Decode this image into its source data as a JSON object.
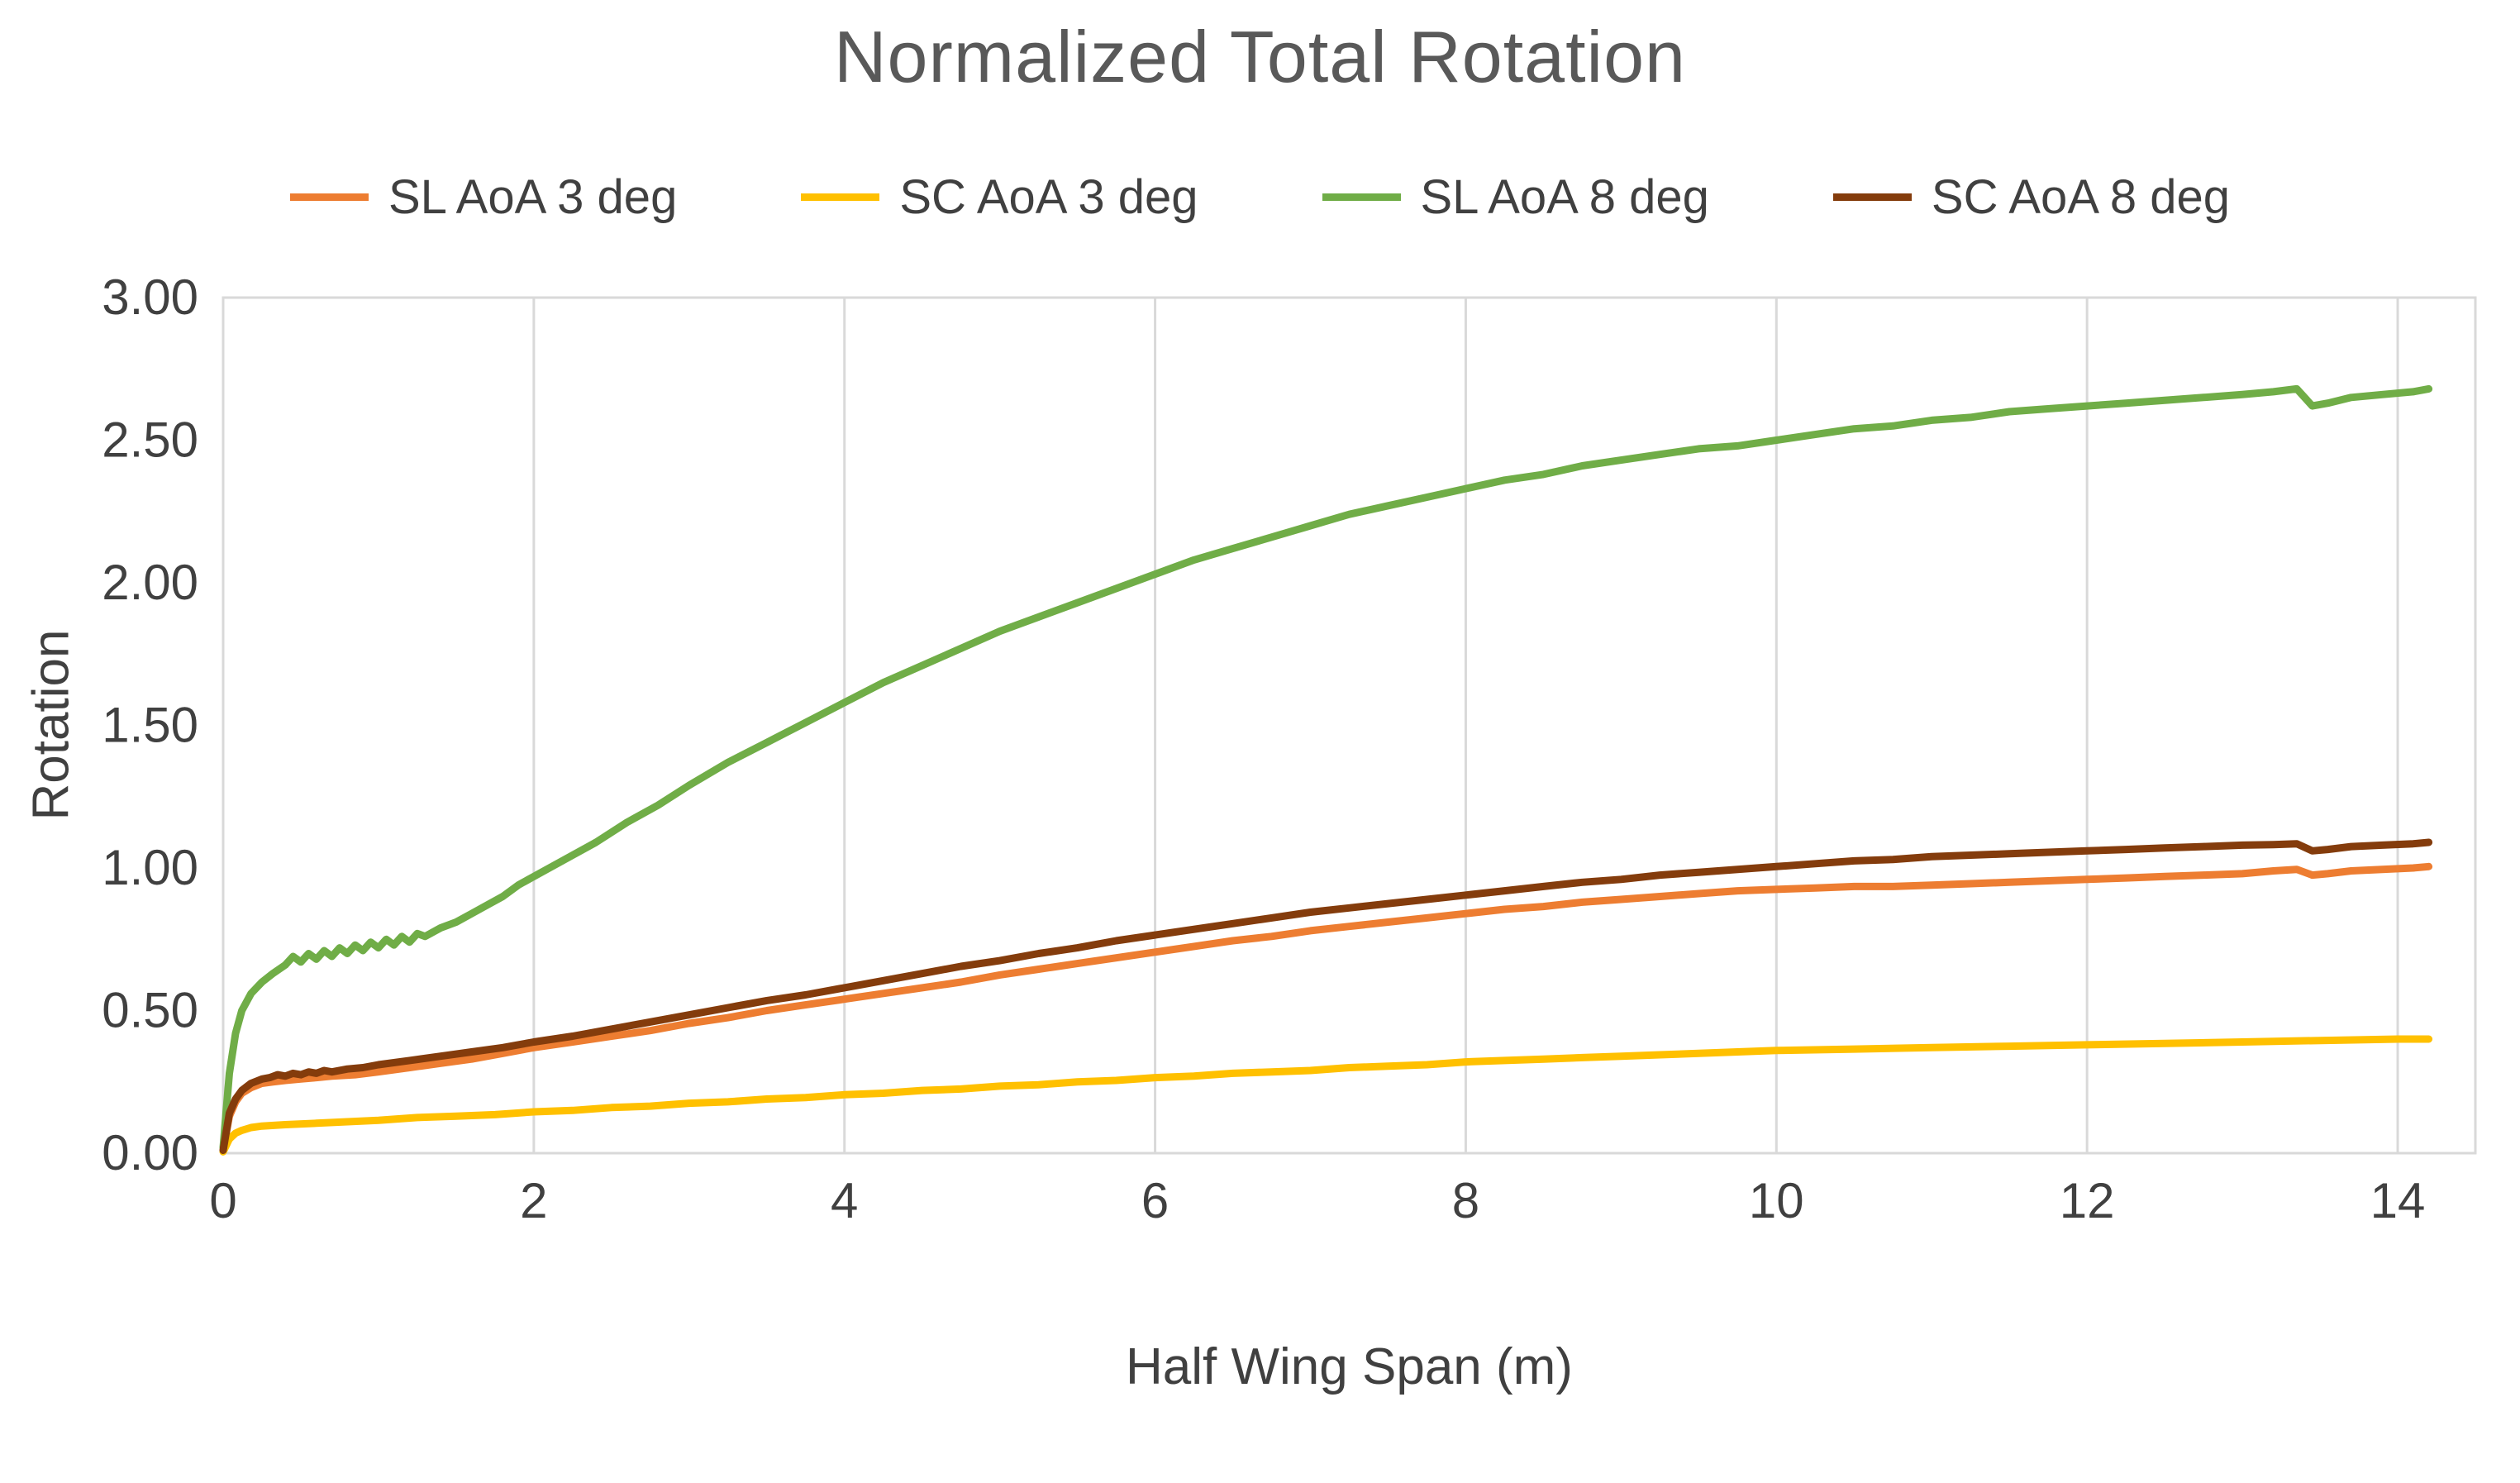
{
  "chart_data": {
    "type": "line",
    "title": "Normalized Total Rotation",
    "xlabel": "Half Wing Span (m)",
    "ylabel": "Rotation",
    "xlim": [
      0,
      14.5
    ],
    "ylim": [
      0,
      3
    ],
    "xticks": {
      "values": [
        0,
        2,
        4,
        6,
        8,
        10,
        12,
        14
      ],
      "labels": [
        "0",
        "2",
        "4",
        "6",
        "8",
        "10",
        "12",
        "14"
      ]
    },
    "yticks": {
      "values": [
        0,
        0.5,
        1,
        1.5,
        2,
        2.5,
        3
      ],
      "labels": [
        "0.00",
        "0.50",
        "1.00",
        "1.50",
        "2.00",
        "2.50",
        "3.00"
      ]
    },
    "grid": {
      "vertical": true,
      "horizontal": false
    },
    "legend_position": "top",
    "colors": {
      "title_text": "#595959",
      "axis_text": "#404040",
      "gridline": "#D9D9D9",
      "plot_border": "#D9D9D9",
      "background": "#FFFFFF"
    },
    "series": [
      {
        "name": "SL AoA 3 deg",
        "color": "#ED7D31",
        "points": [
          [
            0,
            0.01
          ],
          [
            0.04,
            0.13
          ],
          [
            0.08,
            0.18
          ],
          [
            0.12,
            0.21
          ],
          [
            0.18,
            0.23
          ],
          [
            0.25,
            0.245
          ],
          [
            0.32,
            0.25
          ],
          [
            0.4,
            0.255
          ],
          [
            0.5,
            0.26
          ],
          [
            0.6,
            0.265
          ],
          [
            0.7,
            0.27
          ],
          [
            0.85,
            0.275
          ],
          [
            1.0,
            0.285
          ],
          [
            1.2,
            0.3
          ],
          [
            1.4,
            0.315
          ],
          [
            1.6,
            0.33
          ],
          [
            1.8,
            0.35
          ],
          [
            2.0,
            0.37
          ],
          [
            2.25,
            0.39
          ],
          [
            2.5,
            0.41
          ],
          [
            2.75,
            0.43
          ],
          [
            3.0,
            0.455
          ],
          [
            3.25,
            0.475
          ],
          [
            3.5,
            0.5
          ],
          [
            3.75,
            0.52
          ],
          [
            4.0,
            0.54
          ],
          [
            4.25,
            0.56
          ],
          [
            4.5,
            0.58
          ],
          [
            4.75,
            0.6
          ],
          [
            5.0,
            0.625
          ],
          [
            5.25,
            0.645
          ],
          [
            5.5,
            0.665
          ],
          [
            5.75,
            0.685
          ],
          [
            6.0,
            0.705
          ],
          [
            6.25,
            0.725
          ],
          [
            6.5,
            0.745
          ],
          [
            6.75,
            0.76
          ],
          [
            7.0,
            0.78
          ],
          [
            7.25,
            0.795
          ],
          [
            7.5,
            0.81
          ],
          [
            7.75,
            0.825
          ],
          [
            8.0,
            0.84
          ],
          [
            8.25,
            0.855
          ],
          [
            8.5,
            0.865
          ],
          [
            8.75,
            0.88
          ],
          [
            9.0,
            0.89
          ],
          [
            9.25,
            0.9
          ],
          [
            9.5,
            0.91
          ],
          [
            9.75,
            0.92
          ],
          [
            10.0,
            0.925
          ],
          [
            10.25,
            0.93
          ],
          [
            10.5,
            0.935
          ],
          [
            10.75,
            0.935
          ],
          [
            11.0,
            0.94
          ],
          [
            11.25,
            0.945
          ],
          [
            11.5,
            0.95
          ],
          [
            11.75,
            0.955
          ],
          [
            12.0,
            0.96
          ],
          [
            12.25,
            0.965
          ],
          [
            12.5,
            0.97
          ],
          [
            12.75,
            0.975
          ],
          [
            13.0,
            0.98
          ],
          [
            13.2,
            0.99
          ],
          [
            13.35,
            0.995
          ],
          [
            13.45,
            0.975
          ],
          [
            13.55,
            0.98
          ],
          [
            13.7,
            0.99
          ],
          [
            13.9,
            0.995
          ],
          [
            14.1,
            1.0
          ],
          [
            14.2,
            1.005
          ]
        ]
      },
      {
        "name": "SC AoA 3 deg",
        "color": "#FFC000",
        "points": [
          [
            0,
            0.005
          ],
          [
            0.04,
            0.05
          ],
          [
            0.08,
            0.07
          ],
          [
            0.12,
            0.08
          ],
          [
            0.18,
            0.09
          ],
          [
            0.25,
            0.095
          ],
          [
            0.4,
            0.1
          ],
          [
            0.6,
            0.105
          ],
          [
            0.8,
            0.11
          ],
          [
            1.0,
            0.115
          ],
          [
            1.25,
            0.125
          ],
          [
            1.5,
            0.13
          ],
          [
            1.75,
            0.135
          ],
          [
            2.0,
            0.145
          ],
          [
            2.25,
            0.15
          ],
          [
            2.5,
            0.16
          ],
          [
            2.75,
            0.165
          ],
          [
            3.0,
            0.175
          ],
          [
            3.25,
            0.18
          ],
          [
            3.5,
            0.19
          ],
          [
            3.75,
            0.195
          ],
          [
            4.0,
            0.205
          ],
          [
            4.25,
            0.21
          ],
          [
            4.5,
            0.22
          ],
          [
            4.75,
            0.225
          ],
          [
            5.0,
            0.235
          ],
          [
            5.25,
            0.24
          ],
          [
            5.5,
            0.25
          ],
          [
            5.75,
            0.255
          ],
          [
            6.0,
            0.265
          ],
          [
            6.25,
            0.27
          ],
          [
            6.5,
            0.28
          ],
          [
            6.75,
            0.285
          ],
          [
            7.0,
            0.29
          ],
          [
            7.25,
            0.3
          ],
          [
            7.5,
            0.305
          ],
          [
            7.75,
            0.31
          ],
          [
            8.0,
            0.32
          ],
          [
            8.25,
            0.325
          ],
          [
            8.5,
            0.33
          ],
          [
            8.75,
            0.335
          ],
          [
            9.0,
            0.34
          ],
          [
            9.25,
            0.345
          ],
          [
            9.5,
            0.35
          ],
          [
            9.75,
            0.355
          ],
          [
            10.0,
            0.36
          ],
          [
            10.5,
            0.365
          ],
          [
            11.0,
            0.37
          ],
          [
            11.5,
            0.375
          ],
          [
            12.0,
            0.38
          ],
          [
            12.5,
            0.385
          ],
          [
            13.0,
            0.39
          ],
          [
            13.5,
            0.395
          ],
          [
            14.0,
            0.4
          ],
          [
            14.2,
            0.4
          ]
        ]
      },
      {
        "name": "SL AoA 8 deg",
        "color": "#70AD47",
        "points": [
          [
            0,
            0.02
          ],
          [
            0.04,
            0.28
          ],
          [
            0.08,
            0.42
          ],
          [
            0.12,
            0.5
          ],
          [
            0.18,
            0.56
          ],
          [
            0.25,
            0.6
          ],
          [
            0.32,
            0.63
          ],
          [
            0.4,
            0.66
          ],
          [
            0.45,
            0.69
          ],
          [
            0.5,
            0.67
          ],
          [
            0.55,
            0.7
          ],
          [
            0.6,
            0.68
          ],
          [
            0.65,
            0.71
          ],
          [
            0.7,
            0.69
          ],
          [
            0.75,
            0.72
          ],
          [
            0.8,
            0.7
          ],
          [
            0.85,
            0.73
          ],
          [
            0.9,
            0.71
          ],
          [
            0.95,
            0.74
          ],
          [
            1.0,
            0.72
          ],
          [
            1.05,
            0.75
          ],
          [
            1.1,
            0.73
          ],
          [
            1.15,
            0.76
          ],
          [
            1.2,
            0.74
          ],
          [
            1.25,
            0.77
          ],
          [
            1.3,
            0.76
          ],
          [
            1.4,
            0.79
          ],
          [
            1.5,
            0.81
          ],
          [
            1.6,
            0.84
          ],
          [
            1.7,
            0.87
          ],
          [
            1.8,
            0.9
          ],
          [
            1.9,
            0.94
          ],
          [
            2.0,
            0.97
          ],
          [
            2.2,
            1.03
          ],
          [
            2.4,
            1.09
          ],
          [
            2.6,
            1.16
          ],
          [
            2.8,
            1.22
          ],
          [
            3.0,
            1.29
          ],
          [
            3.25,
            1.37
          ],
          [
            3.5,
            1.44
          ],
          [
            3.75,
            1.51
          ],
          [
            4.0,
            1.58
          ],
          [
            4.25,
            1.65
          ],
          [
            4.5,
            1.71
          ],
          [
            4.75,
            1.77
          ],
          [
            5.0,
            1.83
          ],
          [
            5.25,
            1.88
          ],
          [
            5.5,
            1.93
          ],
          [
            5.75,
            1.98
          ],
          [
            6.0,
            2.03
          ],
          [
            6.25,
            2.08
          ],
          [
            6.5,
            2.12
          ],
          [
            6.75,
            2.16
          ],
          [
            7.0,
            2.2
          ],
          [
            7.25,
            2.24
          ],
          [
            7.5,
            2.27
          ],
          [
            7.75,
            2.3
          ],
          [
            8.0,
            2.33
          ],
          [
            8.25,
            2.36
          ],
          [
            8.5,
            2.38
          ],
          [
            8.75,
            2.41
          ],
          [
            9.0,
            2.43
          ],
          [
            9.25,
            2.45
          ],
          [
            9.5,
            2.47
          ],
          [
            9.75,
            2.48
          ],
          [
            10.0,
            2.5
          ],
          [
            10.25,
            2.52
          ],
          [
            10.5,
            2.54
          ],
          [
            10.75,
            2.55
          ],
          [
            11.0,
            2.57
          ],
          [
            11.25,
            2.58
          ],
          [
            11.5,
            2.6
          ],
          [
            11.75,
            2.61
          ],
          [
            12.0,
            2.62
          ],
          [
            12.25,
            2.63
          ],
          [
            12.5,
            2.64
          ],
          [
            12.75,
            2.65
          ],
          [
            13.0,
            2.66
          ],
          [
            13.2,
            2.67
          ],
          [
            13.35,
            2.68
          ],
          [
            13.45,
            2.62
          ],
          [
            13.55,
            2.63
          ],
          [
            13.7,
            2.65
          ],
          [
            13.9,
            2.66
          ],
          [
            14.1,
            2.67
          ],
          [
            14.2,
            2.68
          ]
        ]
      },
      {
        "name": "SC AoA 8 deg",
        "color": "#843C0C",
        "points": [
          [
            0,
            0.01
          ],
          [
            0.04,
            0.14
          ],
          [
            0.08,
            0.19
          ],
          [
            0.12,
            0.22
          ],
          [
            0.18,
            0.245
          ],
          [
            0.25,
            0.26
          ],
          [
            0.3,
            0.265
          ],
          [
            0.35,
            0.275
          ],
          [
            0.4,
            0.27
          ],
          [
            0.45,
            0.28
          ],
          [
            0.5,
            0.275
          ],
          [
            0.55,
            0.285
          ],
          [
            0.6,
            0.28
          ],
          [
            0.65,
            0.29
          ],
          [
            0.7,
            0.285
          ],
          [
            0.8,
            0.295
          ],
          [
            0.9,
            0.3
          ],
          [
            1.0,
            0.31
          ],
          [
            1.2,
            0.325
          ],
          [
            1.4,
            0.34
          ],
          [
            1.6,
            0.355
          ],
          [
            1.8,
            0.37
          ],
          [
            2.0,
            0.39
          ],
          [
            2.25,
            0.41
          ],
          [
            2.5,
            0.435
          ],
          [
            2.75,
            0.46
          ],
          [
            3.0,
            0.485
          ],
          [
            3.25,
            0.51
          ],
          [
            3.5,
            0.535
          ],
          [
            3.75,
            0.555
          ],
          [
            4.0,
            0.58
          ],
          [
            4.25,
            0.605
          ],
          [
            4.5,
            0.63
          ],
          [
            4.75,
            0.655
          ],
          [
            5.0,
            0.675
          ],
          [
            5.25,
            0.7
          ],
          [
            5.5,
            0.72
          ],
          [
            5.75,
            0.745
          ],
          [
            6.0,
            0.765
          ],
          [
            6.25,
            0.785
          ],
          [
            6.5,
            0.805
          ],
          [
            6.75,
            0.825
          ],
          [
            7.0,
            0.845
          ],
          [
            7.25,
            0.86
          ],
          [
            7.5,
            0.875
          ],
          [
            7.75,
            0.89
          ],
          [
            8.0,
            0.905
          ],
          [
            8.25,
            0.92
          ],
          [
            8.5,
            0.935
          ],
          [
            8.75,
            0.95
          ],
          [
            9.0,
            0.96
          ],
          [
            9.25,
            0.975
          ],
          [
            9.5,
            0.985
          ],
          [
            9.75,
            0.995
          ],
          [
            10.0,
            1.005
          ],
          [
            10.25,
            1.015
          ],
          [
            10.5,
            1.025
          ],
          [
            10.75,
            1.03
          ],
          [
            11.0,
            1.04
          ],
          [
            11.25,
            1.045
          ],
          [
            11.5,
            1.05
          ],
          [
            11.75,
            1.055
          ],
          [
            12.0,
            1.06
          ],
          [
            12.25,
            1.065
          ],
          [
            12.5,
            1.07
          ],
          [
            12.75,
            1.075
          ],
          [
            13.0,
            1.08
          ],
          [
            13.2,
            1.082
          ],
          [
            13.35,
            1.085
          ],
          [
            13.45,
            1.06
          ],
          [
            13.55,
            1.065
          ],
          [
            13.7,
            1.075
          ],
          [
            13.9,
            1.08
          ],
          [
            14.1,
            1.085
          ],
          [
            14.2,
            1.09
          ]
        ]
      }
    ]
  }
}
